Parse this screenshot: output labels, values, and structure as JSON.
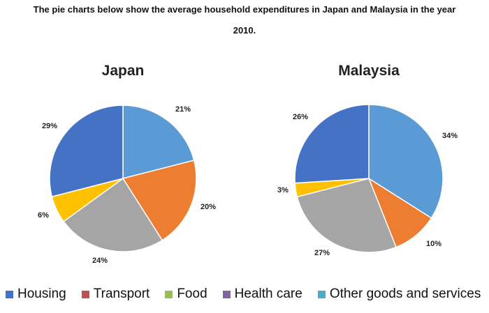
{
  "page_title": {
    "line1": "The pie charts below show the average household expenditures in Japan and Malaysia in the year",
    "line2": "2010."
  },
  "colors": {
    "housing": "#4472c4",
    "transport": "#ed7d31",
    "food": "#a5a5a5",
    "health_care": "#ffc000",
    "other_goods_and_services": "#5b9bd5"
  },
  "legend": [
    {
      "label": "Housing",
      "color": "#4472c4"
    },
    {
      "label": "Transport",
      "color": "#c0504d"
    },
    {
      "label": "Food",
      "color": "#9bbb59"
    },
    {
      "label": "Health care",
      "color": "#8064a2"
    },
    {
      "label": "Other goods and services",
      "color": "#4bacc6"
    }
  ],
  "chart_data": [
    {
      "type": "pie",
      "title": "Japan",
      "slices": [
        {
          "value": 21,
          "label": "21%",
          "color": "#5b9bd5"
        },
        {
          "value": 20,
          "label": "20%",
          "color": "#ed7d31"
        },
        {
          "value": 24,
          "label": "24%",
          "color": "#a5a5a5"
        },
        {
          "value": 6,
          "label": "6%",
          "color": "#ffc000"
        },
        {
          "value": 29,
          "label": "29%",
          "color": "#4472c4"
        }
      ]
    },
    {
      "type": "pie",
      "title": "Malaysia",
      "slices": [
        {
          "value": 34,
          "label": "34%",
          "color": "#5b9bd5"
        },
        {
          "value": 10,
          "label": "10%",
          "color": "#ed7d31"
        },
        {
          "value": 27,
          "label": "27%",
          "color": "#a5a5a5"
        },
        {
          "value": 3,
          "label": "3%",
          "color": "#ffc000"
        },
        {
          "value": 26,
          "label": "26%",
          "color": "#4472c4"
        }
      ]
    }
  ]
}
